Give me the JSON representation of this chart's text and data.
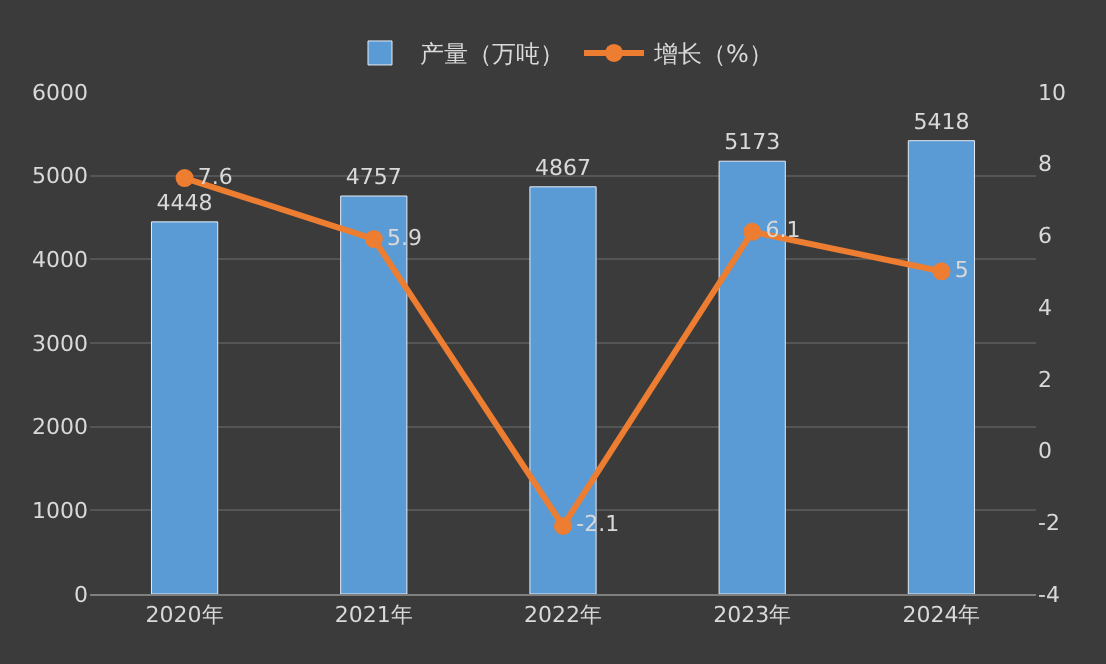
{
  "chart_data": {
    "type": "bar",
    "categories": [
      "2020年",
      "2021年",
      "2022年",
      "2023年",
      "2024年"
    ],
    "series": [
      {
        "name": "产量（万吨）",
        "color": "#5b9bd5",
        "values": [
          4448,
          4757,
          4867,
          5173,
          5418
        ]
      },
      {
        "name": "增长（%）",
        "type": "line",
        "axis": "y2",
        "color": "#ed7d31",
        "values": [
          7.6,
          5.9,
          -2.1,
          6.1,
          5
        ]
      }
    ],
    "ylim": [
      0,
      6000
    ],
    "yticks": [
      0,
      1000,
      2000,
      3000,
      4000,
      5000,
      6000
    ],
    "y2lim": [
      -4,
      10
    ],
    "y2ticks": [
      -4,
      -2,
      0,
      2,
      4,
      6,
      8,
      10
    ],
    "data_labels": true,
    "grid": "y",
    "legend": "top",
    "marker": "circle"
  }
}
